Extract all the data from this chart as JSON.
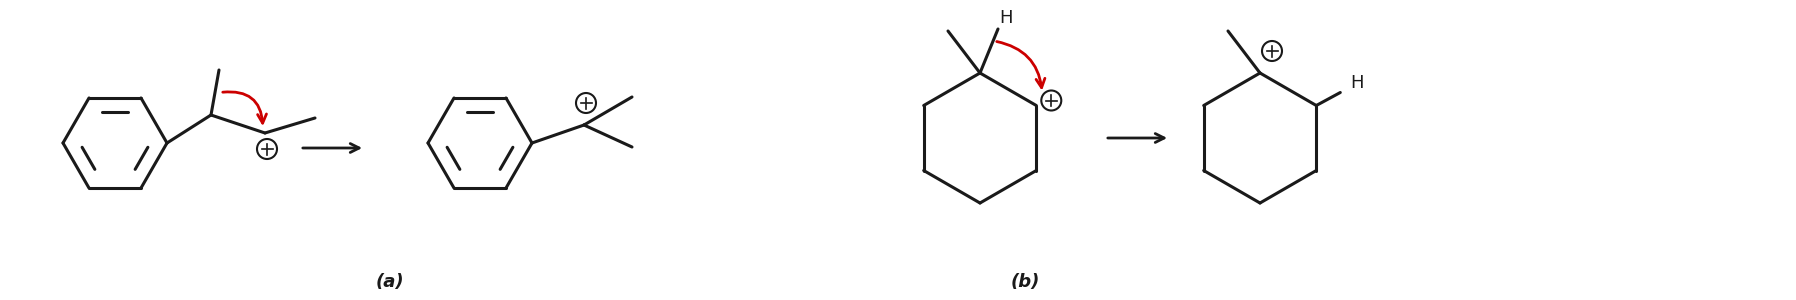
{
  "bg_color": "#ffffff",
  "line_color": "#1a1a1a",
  "red_color": "#cc0000",
  "label_a": "(a)",
  "label_b": "(b)",
  "figsize": [
    17.96,
    3.0
  ],
  "dpi": 100
}
